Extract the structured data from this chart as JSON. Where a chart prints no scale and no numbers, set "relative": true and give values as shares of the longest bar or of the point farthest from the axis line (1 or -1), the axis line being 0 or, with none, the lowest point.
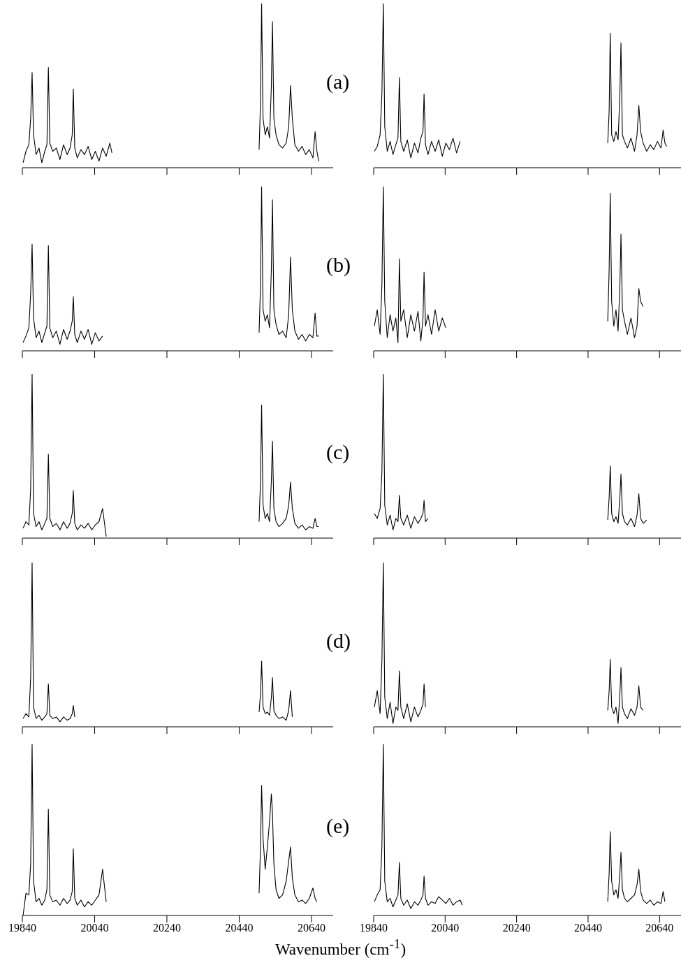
{
  "chart_data": [
    {
      "type": "line",
      "relative": true,
      "xlim": [
        19840,
        20700
      ],
      "xticks": [
        19840,
        20040,
        20240,
        20440,
        20640
      ],
      "tick_labels": false,
      "annotations": [
        "(a)"
      ],
      "x": [
        19842,
        19850,
        19858,
        19863,
        19867,
        19871,
        19878,
        19886,
        19894,
        19902,
        19908,
        19912,
        19916,
        19924,
        19934,
        19944,
        19954,
        19964,
        19972,
        19978,
        19981,
        19985,
        19992,
        20002,
        20012,
        20022,
        20032,
        20042,
        20052,
        20062,
        20072,
        20082,
        20088,
        20300,
        20495,
        20499,
        20502,
        20506,
        20512,
        20518,
        20524,
        20529,
        20532,
        20536,
        20542,
        20550,
        20560,
        20570,
        20577,
        20582,
        20587,
        20594,
        20604,
        20614,
        20624,
        20634,
        20644,
        20650,
        20655,
        20660
      ],
      "series": [
        {
          "color": "#000000",
          "values": [
            0.03,
            0.1,
            0.14,
            0.3,
            0.58,
            0.2,
            0.08,
            0.12,
            0.03,
            0.1,
            0.14,
            0.61,
            0.15,
            0.1,
            0.12,
            0.05,
            0.14,
            0.08,
            0.12,
            0.2,
            0.48,
            0.12,
            0.06,
            0.11,
            0.08,
            0.13,
            0.05,
            0.1,
            0.04,
            0.12,
            0.07,
            0.15,
            0.09,
            null,
            0.11,
            0.4,
            1.0,
            0.3,
            0.2,
            0.25,
            0.18,
            0.5,
            0.89,
            0.3,
            0.2,
            0.14,
            0.12,
            0.15,
            0.25,
            0.5,
            0.3,
            0.14,
            0.1,
            0.13,
            0.08,
            0.11,
            0.06,
            0.22,
            0.1,
            0.04
          ]
        }
      ]
    },
    {
      "type": "line",
      "relative": true,
      "xlim": [
        19840,
        20700
      ],
      "xticks": [
        19840,
        20040,
        20240,
        20440,
        20640
      ],
      "tick_labels": false,
      "x": [
        19842,
        19850,
        19858,
        19863,
        19867,
        19871,
        19878,
        19886,
        19894,
        19902,
        19908,
        19912,
        19916,
        19924,
        19934,
        19944,
        19954,
        19964,
        19972,
        19978,
        19981,
        19985,
        19992,
        20002,
        20012,
        20022,
        20032,
        20042,
        20052,
        20062,
        20072,
        20082,
        20300,
        20495,
        20499,
        20502,
        20506,
        20512,
        20518,
        20524,
        20529,
        20532,
        20536,
        20542,
        20550,
        20560,
        20570,
        20577,
        20582,
        20587,
        20594,
        20604,
        20614,
        20624,
        20634,
        20644,
        20650,
        20655,
        20660
      ],
      "series": [
        {
          "color": "#000000",
          "values": [
            0.1,
            0.13,
            0.2,
            0.45,
            1.0,
            0.25,
            0.1,
            0.16,
            0.08,
            0.14,
            0.18,
            0.55,
            0.16,
            0.1,
            0.17,
            0.06,
            0.15,
            0.09,
            0.18,
            0.22,
            0.45,
            0.14,
            0.08,
            0.16,
            0.1,
            0.17,
            0.07,
            0.15,
            0.11,
            0.18,
            0.09,
            0.16,
            null,
            0.15,
            0.35,
            0.82,
            0.2,
            0.16,
            0.22,
            0.17,
            0.45,
            0.76,
            0.2,
            0.16,
            0.12,
            0.18,
            0.1,
            0.2,
            0.38,
            0.22,
            0.15,
            0.1,
            0.14,
            0.11,
            0.16,
            0.12,
            0.23,
            0.15,
            0.13
          ]
        }
      ]
    },
    {
      "type": "line",
      "relative": true,
      "xlim": [
        19840,
        20700
      ],
      "xticks": [
        19840,
        20040,
        20240,
        20440,
        20640
      ],
      "tick_labels": false,
      "annotations": [
        "(b)"
      ],
      "x": [
        19842,
        19850,
        19858,
        19863,
        19867,
        19871,
        19878,
        19886,
        19894,
        19902,
        19908,
        19912,
        19916,
        19924,
        19934,
        19944,
        19954,
        19964,
        19972,
        19978,
        19981,
        19985,
        19992,
        20002,
        20012,
        20022,
        20032,
        20042,
        20052,
        20062,
        20300,
        20495,
        20499,
        20502,
        20506,
        20512,
        20518,
        20524,
        20529,
        20532,
        20536,
        20542,
        20550,
        20560,
        20570,
        20577,
        20582,
        20587,
        20594,
        20604,
        20614,
        20624,
        20634,
        20644,
        20650,
        20655,
        20660
      ],
      "series": [
        {
          "color": "#000000",
          "values": [
            0.05,
            0.09,
            0.14,
            0.35,
            0.65,
            0.2,
            0.08,
            0.12,
            0.05,
            0.11,
            0.15,
            0.64,
            0.14,
            0.08,
            0.12,
            0.04,
            0.13,
            0.07,
            0.12,
            0.18,
            0.33,
            0.1,
            0.05,
            0.12,
            0.07,
            0.13,
            0.04,
            0.11,
            0.06,
            0.09,
            null,
            0.11,
            0.4,
            1.0,
            0.25,
            0.18,
            0.22,
            0.14,
            0.5,
            0.92,
            0.25,
            0.16,
            0.1,
            0.12,
            0.08,
            0.22,
            0.57,
            0.25,
            0.12,
            0.07,
            0.1,
            0.06,
            0.1,
            0.08,
            0.23,
            0.09,
            0.09
          ]
        }
      ]
    },
    {
      "type": "line",
      "relative": true,
      "xlim": [
        19840,
        20700
      ],
      "xticks": [
        19840,
        20040,
        20240,
        20440,
        20640
      ],
      "tick_labels": false,
      "x": [
        19842,
        19850,
        19858,
        19863,
        19867,
        19871,
        19878,
        19886,
        19894,
        19902,
        19908,
        19912,
        19916,
        19924,
        19934,
        19944,
        19954,
        19964,
        19972,
        19978,
        19981,
        19985,
        19992,
        20002,
        20012,
        20022,
        20032,
        20042,
        20300,
        20495,
        20499,
        20502,
        20506,
        20512,
        20518,
        20524,
        20529,
        20532,
        20536,
        20542,
        20550,
        20560,
        20570,
        20577,
        20582,
        20587,
        20594
      ],
      "series": [
        {
          "color": "#000000",
          "values": [
            0.15,
            0.25,
            0.1,
            0.4,
            1.0,
            0.3,
            0.08,
            0.22,
            0.12,
            0.2,
            0.05,
            0.56,
            0.18,
            0.25,
            0.08,
            0.22,
            0.12,
            0.24,
            0.06,
            0.2,
            0.48,
            0.15,
            0.22,
            0.1,
            0.25,
            0.12,
            0.2,
            0.14,
            null,
            0.18,
            0.5,
            0.96,
            0.3,
            0.15,
            0.25,
            0.12,
            0.4,
            0.71,
            0.25,
            0.18,
            0.1,
            0.2,
            0.08,
            0.15,
            0.38,
            0.3,
            0.27
          ]
        }
      ]
    },
    {
      "type": "line",
      "relative": true,
      "xlim": [
        19840,
        20700
      ],
      "xticks": [
        19840,
        20040,
        20240,
        20440,
        20640
      ],
      "tick_labels": false,
      "annotations": [
        "(c)"
      ],
      "x": [
        19842,
        19850,
        19858,
        19863,
        19867,
        19871,
        19878,
        19886,
        19894,
        19902,
        19908,
        19912,
        19916,
        19924,
        19934,
        19944,
        19954,
        19964,
        19972,
        19978,
        19981,
        19985,
        19992,
        20002,
        20012,
        20022,
        20032,
        20042,
        20052,
        20062,
        20072,
        20300,
        20495,
        20499,
        20502,
        20506,
        20512,
        20518,
        20524,
        20529,
        20532,
        20536,
        20542,
        20550,
        20560,
        20570,
        20577,
        20582,
        20587,
        20594,
        20604,
        20614,
        20624,
        20634,
        20644,
        20650,
        20655,
        20660
      ],
      "series": [
        {
          "color": "#000000",
          "values": [
            0.06,
            0.1,
            0.08,
            0.3,
            1.0,
            0.15,
            0.07,
            0.1,
            0.05,
            0.09,
            0.12,
            0.51,
            0.12,
            0.07,
            0.09,
            0.05,
            0.1,
            0.06,
            0.09,
            0.15,
            0.29,
            0.09,
            0.05,
            0.08,
            0.06,
            0.09,
            0.05,
            0.08,
            0.1,
            0.18,
            0.01,
            null,
            0.1,
            0.35,
            0.81,
            0.2,
            0.12,
            0.15,
            0.1,
            0.35,
            0.59,
            0.18,
            0.1,
            0.07,
            0.09,
            0.12,
            0.2,
            0.34,
            0.18,
            0.09,
            0.06,
            0.08,
            0.05,
            0.07,
            0.06,
            0.12,
            0.07,
            0.07
          ]
        }
      ]
    },
    {
      "type": "line",
      "relative": true,
      "xlim": [
        19840,
        20700
      ],
      "xticks": [
        19840,
        20040,
        20240,
        20440,
        20640
      ],
      "tick_labels": false,
      "x": [
        19842,
        19850,
        19858,
        19863,
        19867,
        19871,
        19878,
        19886,
        19894,
        19902,
        19908,
        19912,
        19916,
        19924,
        19934,
        19944,
        19954,
        19964,
        19972,
        19978,
        19981,
        19985,
        19992,
        20300,
        20495,
        20499,
        20502,
        20506,
        20512,
        20518,
        20524,
        20529,
        20532,
        20536,
        20542,
        20550,
        20560,
        20570,
        20577,
        20582,
        20587,
        20594,
        20604
      ],
      "series": [
        {
          "color": "#000000",
          "values": [
            0.15,
            0.12,
            0.18,
            0.4,
            1.0,
            0.2,
            0.08,
            0.14,
            0.05,
            0.12,
            0.1,
            0.26,
            0.12,
            0.08,
            0.14,
            0.06,
            0.13,
            0.09,
            0.12,
            0.15,
            0.23,
            0.1,
            0.12,
            null,
            0.11,
            0.25,
            0.44,
            0.15,
            0.1,
            0.13,
            0.09,
            0.25,
            0.39,
            0.15,
            0.1,
            0.08,
            0.12,
            0.07,
            0.14,
            0.27,
            0.12,
            0.09,
            0.11
          ]
        }
      ]
    },
    {
      "type": "line",
      "relative": true,
      "xlim": [
        19840,
        20700
      ],
      "xticks": [
        19840,
        20040,
        20240,
        20440,
        20640
      ],
      "tick_labels": false,
      "annotations": [
        "(d)"
      ],
      "x": [
        19842,
        19850,
        19858,
        19863,
        19867,
        19871,
        19878,
        19886,
        19894,
        19902,
        19908,
        19912,
        19916,
        19924,
        19934,
        19944,
        19954,
        19964,
        19972,
        19978,
        19981,
        19985,
        20300,
        20495,
        20499,
        20502,
        20506,
        20512,
        20518,
        20524,
        20529,
        20532,
        20536,
        20542,
        20550,
        20560,
        20570,
        20577,
        20582,
        20587
      ],
      "series": [
        {
          "color": "#000000",
          "values": [
            0.05,
            0.08,
            0.06,
            0.3,
            1.0,
            0.12,
            0.05,
            0.07,
            0.04,
            0.06,
            0.08,
            0.26,
            0.07,
            0.05,
            0.06,
            0.03,
            0.06,
            0.04,
            0.05,
            0.08,
            0.13,
            0.06,
            null,
            0.09,
            0.2,
            0.4,
            0.12,
            0.08,
            0.09,
            0.07,
            0.18,
            0.3,
            0.1,
            0.07,
            0.05,
            0.06,
            0.04,
            0.1,
            0.22,
            0.06
          ]
        }
      ]
    },
    {
      "type": "line",
      "relative": true,
      "xlim": [
        19840,
        20700
      ],
      "xticks": [
        19840,
        20040,
        20240,
        20440,
        20640
      ],
      "tick_labels": false,
      "x": [
        19842,
        19850,
        19858,
        19863,
        19867,
        19871,
        19878,
        19886,
        19894,
        19902,
        19908,
        19912,
        19916,
        19924,
        19934,
        19944,
        19954,
        19964,
        19972,
        19978,
        19981,
        19985,
        20300,
        20495,
        20499,
        20502,
        20506,
        20512,
        20518,
        20524,
        20529,
        20532,
        20536,
        20542,
        20550,
        20560,
        20570,
        20577,
        20582,
        20587,
        20594
      ],
      "series": [
        {
          "color": "#000000",
          "values": [
            0.12,
            0.22,
            0.08,
            0.4,
            1.0,
            0.18,
            0.05,
            0.15,
            0.02,
            0.12,
            0.1,
            0.34,
            0.12,
            0.05,
            0.14,
            0.03,
            0.12,
            0.06,
            0.1,
            0.14,
            0.26,
            0.12,
            null,
            0.1,
            0.22,
            0.41,
            0.12,
            0.08,
            0.12,
            0.02,
            0.2,
            0.36,
            0.12,
            0.08,
            0.05,
            0.11,
            0.07,
            0.12,
            0.25,
            0.12,
            0.1
          ]
        }
      ]
    },
    {
      "type": "line",
      "relative": true,
      "xlim": [
        19840,
        20700
      ],
      "xticks": [
        19840,
        20040,
        20240,
        20440,
        20640
      ],
      "tick_labels": "x",
      "annotations": [
        "(e)"
      ],
      "xlabel": "Wavenumber (cm$^{-1}$)",
      "x": [
        19842,
        19850,
        19858,
        19863,
        19867,
        19871,
        19878,
        19886,
        19894,
        19902,
        19908,
        19912,
        19916,
        19924,
        19934,
        19944,
        19954,
        19964,
        19972,
        19978,
        19981,
        19985,
        19992,
        20002,
        20012,
        20022,
        20032,
        20042,
        20052,
        20062,
        20072,
        20300,
        20495,
        20499,
        20502,
        20506,
        20512,
        20518,
        20524,
        20529,
        20532,
        20536,
        20542,
        20550,
        20560,
        20570,
        20577,
        20582,
        20587,
        20594,
        20604,
        20614,
        20624,
        20634,
        20644,
        20650,
        20655
      ],
      "series": [
        {
          "color": "#000000",
          "values": [
            0.0,
            0.13,
            0.12,
            0.3,
            1.0,
            0.2,
            0.08,
            0.1,
            0.06,
            0.09,
            0.15,
            0.62,
            0.12,
            0.08,
            0.09,
            0.06,
            0.1,
            0.07,
            0.09,
            0.14,
            0.39,
            0.1,
            0.06,
            0.09,
            0.05,
            0.08,
            0.06,
            0.09,
            0.12,
            0.27,
            0.08,
            null,
            0.13,
            0.4,
            0.76,
            0.45,
            0.27,
            0.4,
            0.55,
            0.71,
            0.6,
            0.3,
            0.15,
            0.1,
            0.12,
            0.2,
            0.32,
            0.4,
            0.22,
            0.12,
            0.08,
            0.09,
            0.07,
            0.1,
            0.16,
            0.1,
            0.08
          ]
        }
      ]
    },
    {
      "type": "line",
      "relative": true,
      "xlim": [
        19840,
        20700
      ],
      "xticks": [
        19840,
        20040,
        20240,
        20440,
        20640
      ],
      "tick_labels": "x",
      "x": [
        19842,
        19850,
        19858,
        19863,
        19867,
        19871,
        19878,
        19886,
        19894,
        19902,
        19908,
        19912,
        19916,
        19924,
        19934,
        19944,
        19954,
        19964,
        19972,
        19978,
        19981,
        19985,
        19992,
        20002,
        20012,
        20022,
        20032,
        20042,
        20052,
        20062,
        20072,
        20082,
        20088,
        20300,
        20495,
        20499,
        20502,
        20506,
        20512,
        20518,
        20524,
        20529,
        20532,
        20536,
        20542,
        20550,
        20560,
        20570,
        20577,
        20582,
        20587,
        20594,
        20604,
        20614,
        20624,
        20634,
        20644,
        20650,
        20655
      ],
      "series": [
        {
          "color": "#000000",
          "values": [
            0.08,
            0.12,
            0.15,
            0.4,
            1.0,
            0.2,
            0.08,
            0.1,
            0.05,
            0.09,
            0.12,
            0.31,
            0.1,
            0.06,
            0.09,
            0.04,
            0.08,
            0.06,
            0.09,
            0.12,
            0.23,
            0.1,
            0.06,
            0.08,
            0.07,
            0.11,
            0.09,
            0.07,
            0.1,
            0.06,
            0.08,
            0.09,
            0.06,
            null,
            0.08,
            0.25,
            0.49,
            0.2,
            0.12,
            0.15,
            0.1,
            0.25,
            0.37,
            0.15,
            0.1,
            0.08,
            0.1,
            0.12,
            0.18,
            0.27,
            0.14,
            0.09,
            0.07,
            0.09,
            0.06,
            0.08,
            0.07,
            0.14,
            0.08
          ]
        }
      ]
    }
  ]
}
